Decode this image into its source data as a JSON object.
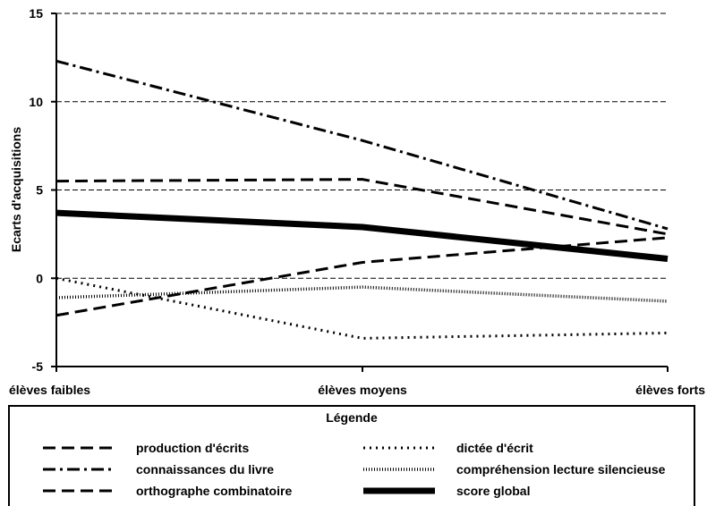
{
  "chart_data": {
    "type": "line",
    "title": "",
    "xlabel": "",
    "ylabel": "Ecarts d'acquisitions",
    "categories": [
      "élèves faibles",
      "élèves moyens",
      "élèves forts"
    ],
    "ylim": [
      -5,
      15
    ],
    "yticks": [
      -5,
      0,
      5,
      10,
      15
    ],
    "grid": true,
    "series": [
      {
        "name": "production d'écrits",
        "values": [
          5.5,
          5.6,
          2.5
        ],
        "style": "dashed"
      },
      {
        "name": "connaissances du livre",
        "values": [
          12.3,
          7.8,
          2.8
        ],
        "style": "dashdot"
      },
      {
        "name": "orthographe combinatoire",
        "values": [
          -2.1,
          0.9,
          2.3
        ],
        "style": "dashed"
      },
      {
        "name": "dictée d'écrit",
        "values": [
          0.0,
          -3.4,
          -3.1
        ],
        "style": "dotted"
      },
      {
        "name": "compréhension lecture silencieuse",
        "values": [
          -1.1,
          -0.5,
          -1.3
        ],
        "style": "finedotted"
      },
      {
        "name": "score global",
        "values": [
          3.7,
          2.9,
          1.1
        ],
        "style": "bold"
      }
    ],
    "legend": {
      "title": "Légende",
      "placement": "bottom"
    }
  }
}
